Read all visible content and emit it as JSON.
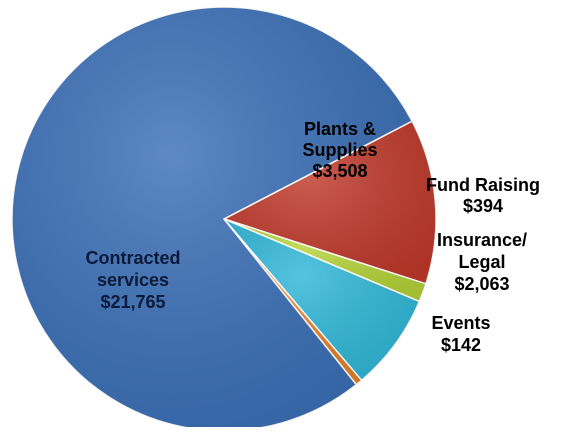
{
  "chart_data": {
    "type": "pie",
    "title": "",
    "categories": [
      "Plants & Supplies",
      "Fund Raising",
      "Insurance/ Legal",
      "Events",
      "Contracted services"
    ],
    "values": [
      3508,
      394,
      2063,
      142,
      21765
    ],
    "value_labels": [
      "$3,508",
      "$394",
      "$2,063",
      "$142",
      "$21,765"
    ],
    "colors": [
      "#C0392B",
      "#B5D337",
      "#2FB8D8",
      "#E8822B",
      "#3A6FB7"
    ],
    "slice_names": [
      "plants-supplies",
      "fund-raising",
      "insurance-legal",
      "events",
      "contracted-services"
    ],
    "label_lines": [
      [
        "Plants &",
        "Supplies",
        "$3,508"
      ],
      [
        "Fund Raising",
        "$394"
      ],
      [
        "Insurance/",
        "Legal",
        "$2,063"
      ],
      [
        "Events",
        "$142"
      ],
      [
        "Contracted",
        "services",
        "$21,765"
      ]
    ],
    "legend": "none",
    "label_placement": "on-slice-and-outside"
  }
}
